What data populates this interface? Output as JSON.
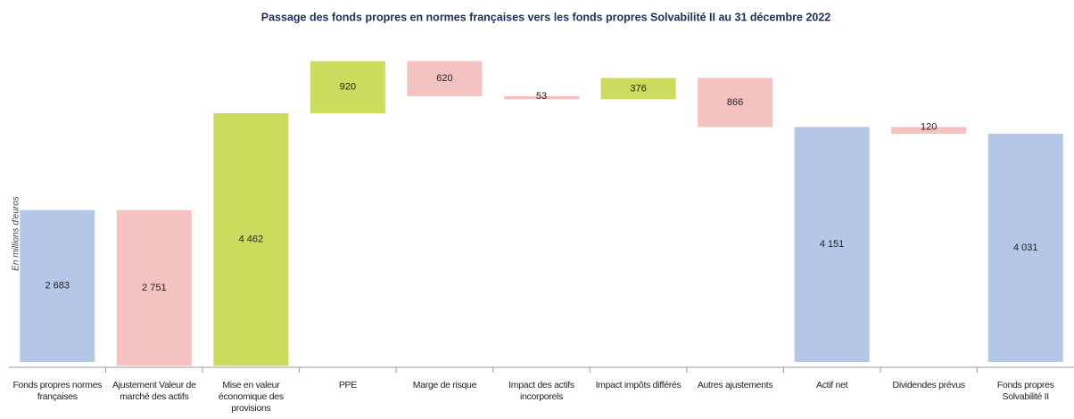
{
  "chart_data": {
    "type": "waterfall",
    "title": "Passage des fonds propres en normes françaises vers les fonds propres Solvabilité II au 31 décembre 2022",
    "y_label": "En millions d'euros",
    "categories": [
      "Fonds propres normes françaises",
      "Ajustement Valeur de marché des actifs",
      "Mise en valeur économique des provisions",
      "PPE",
      "Marge de risque",
      "Impact des actifs incorporels",
      "Impact impôts différés",
      "Autres ajustements",
      "Actif net",
      "Dividendes prévus",
      "Fonds propres Solvabilité II"
    ],
    "measure": [
      "absolute",
      "relative",
      "relative",
      "relative",
      "relative",
      "relative",
      "relative",
      "relative",
      "absolute",
      "relative",
      "absolute"
    ],
    "values": [
      2683,
      -2751,
      4462,
      920,
      -620,
      -53,
      376,
      -866,
      4151,
      -120,
      4031
    ],
    "value_labels": [
      "2 683",
      "2 751",
      "4 462",
      "920",
      "620",
      "53",
      "376",
      "866",
      "4 151",
      "120",
      "4 031"
    ],
    "colors": {
      "total": "#b4c7e7",
      "increase": "#cddc5e",
      "decrease": "#f4c2c0"
    }
  }
}
